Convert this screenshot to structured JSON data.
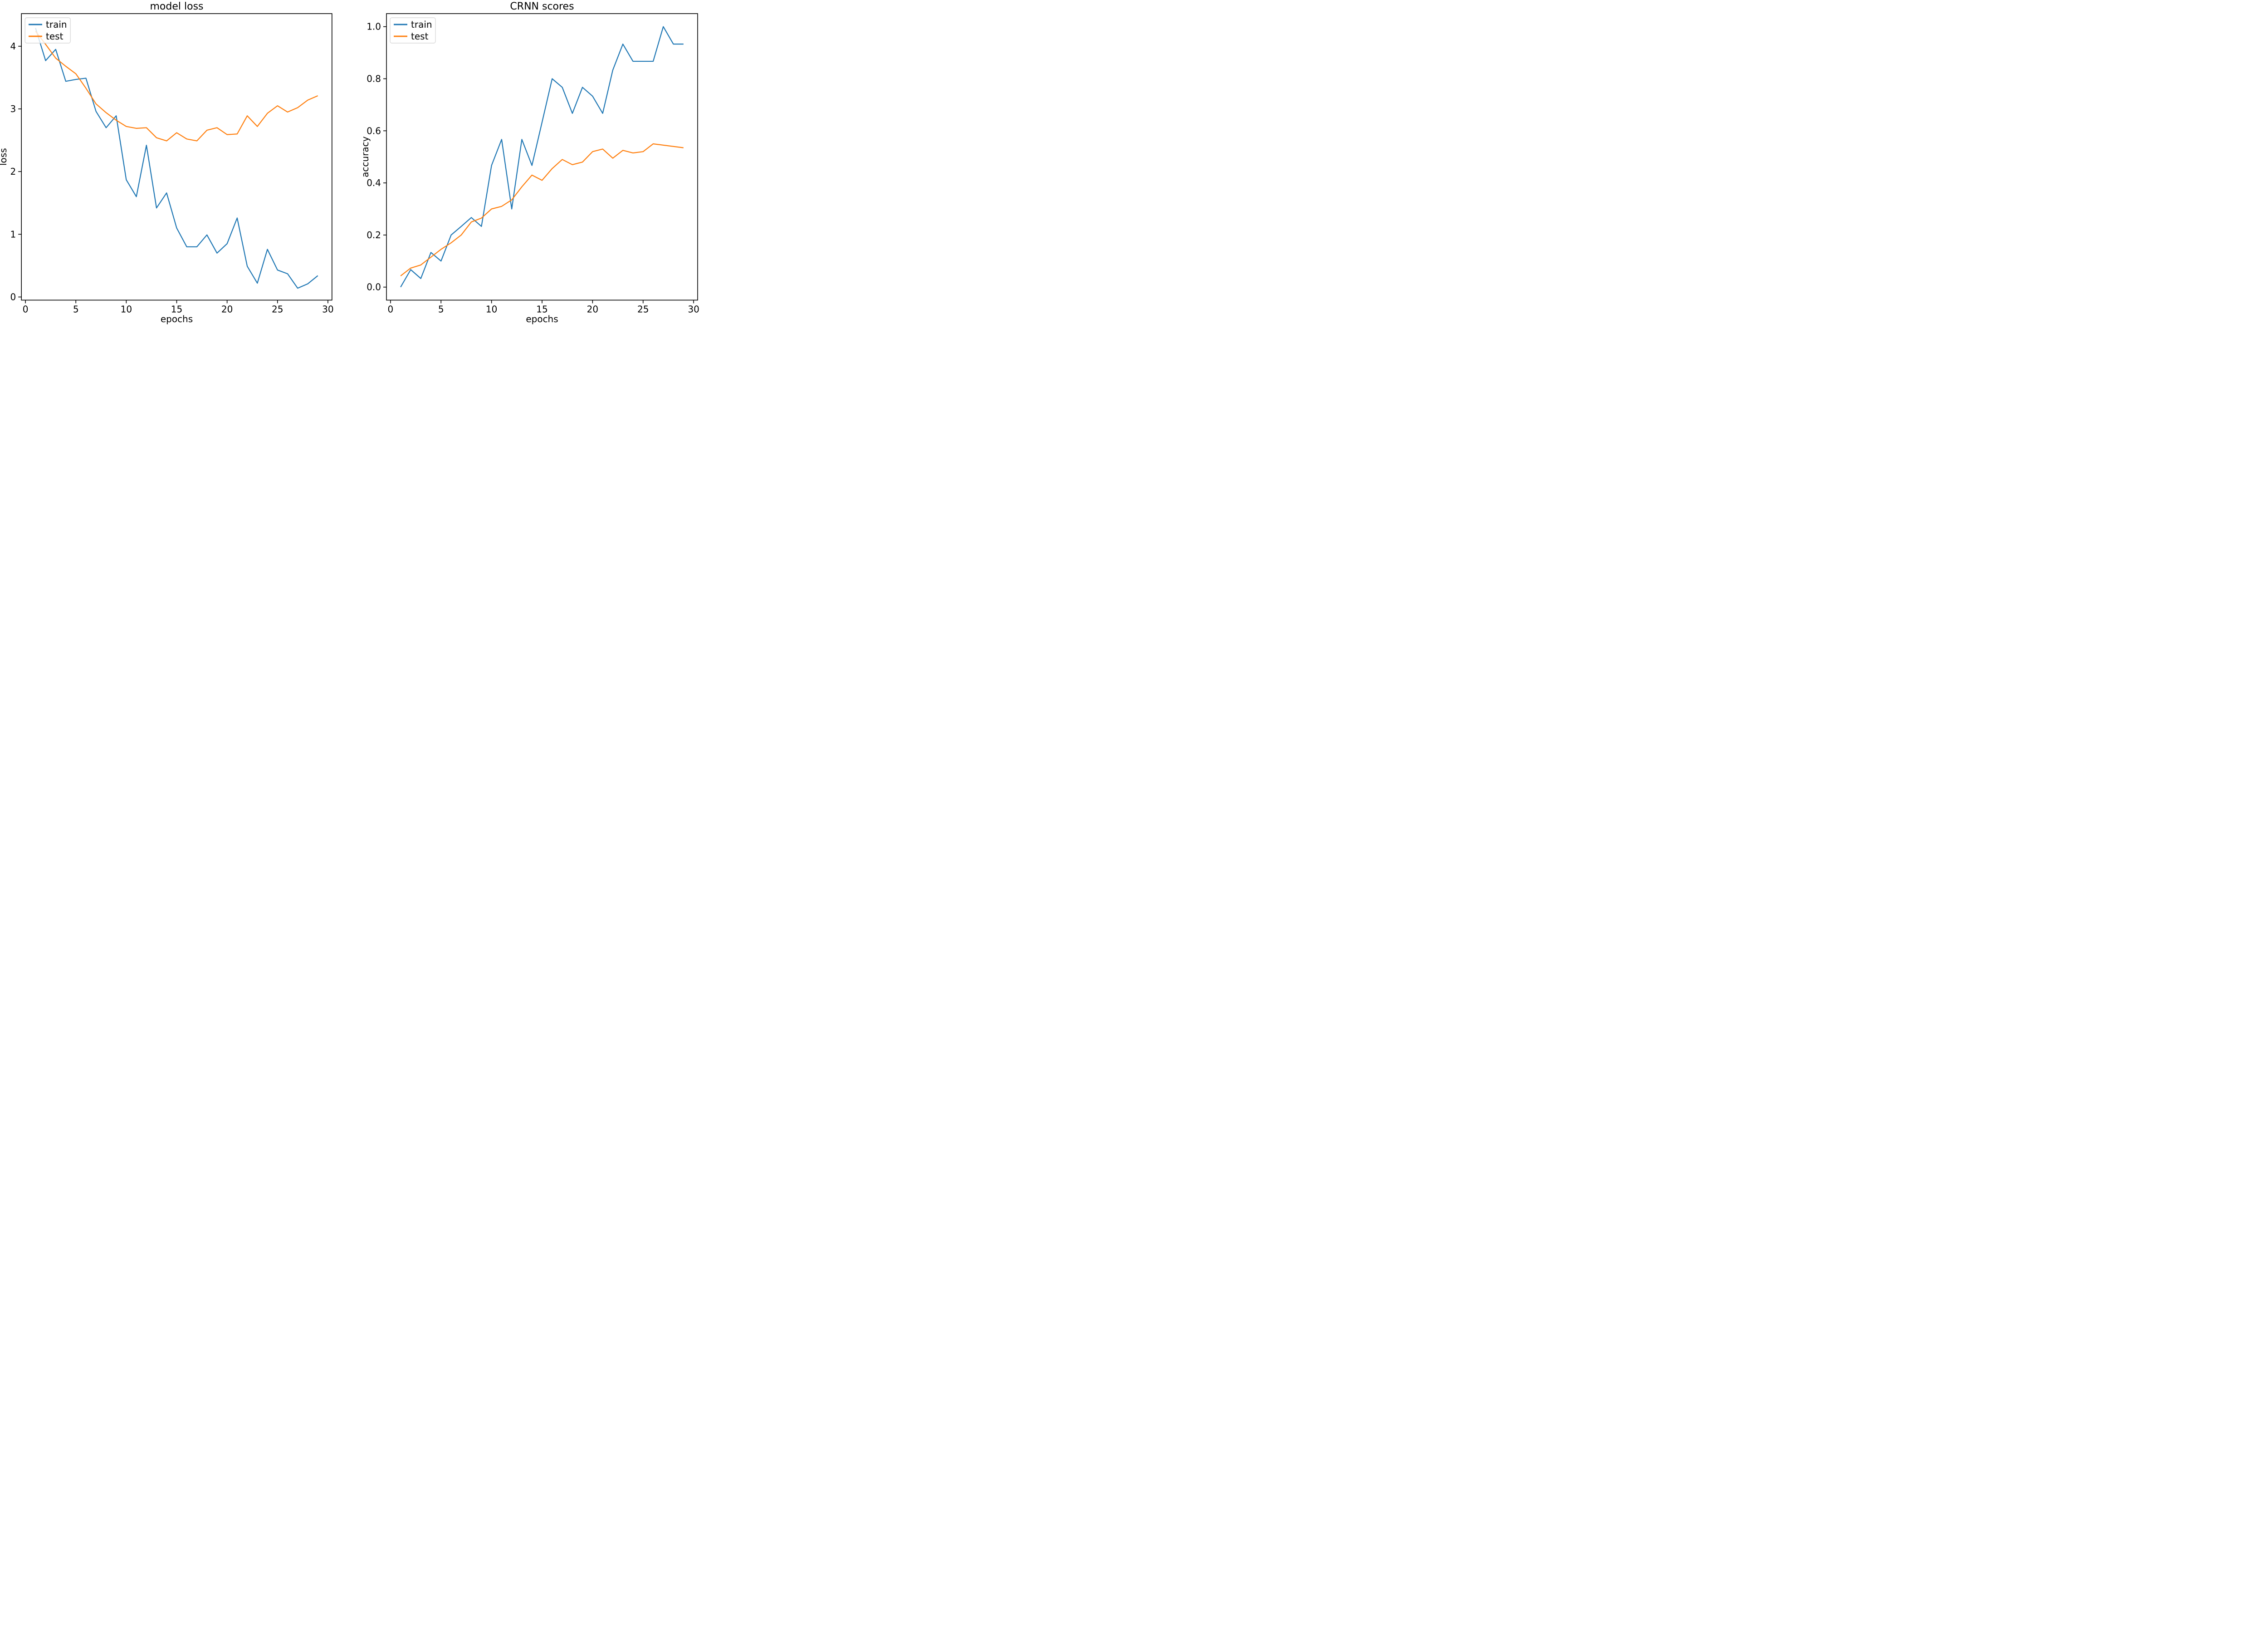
{
  "chart_data": [
    {
      "id": "model-loss",
      "type": "line",
      "title": "model loss",
      "xlabel": "epochs",
      "ylabel": "loss",
      "x": [
        1,
        2,
        3,
        4,
        5,
        6,
        7,
        8,
        9,
        10,
        11,
        12,
        13,
        14,
        15,
        16,
        17,
        18,
        19,
        20,
        21,
        22,
        23,
        24,
        25,
        26,
        27,
        28,
        29
      ],
      "series": [
        {
          "name": "train",
          "color": "#1f77b4",
          "values": [
            4.29,
            3.77,
            3.95,
            3.44,
            3.47,
            3.49,
            2.96,
            2.7,
            2.89,
            1.87,
            1.6,
            2.42,
            1.42,
            1.66,
            1.1,
            0.8,
            0.8,
            0.99,
            0.7,
            0.85,
            1.26,
            0.49,
            0.22,
            0.76,
            0.43,
            0.37,
            0.14,
            0.21,
            0.34
          ]
        },
        {
          "name": "test",
          "color": "#ff7f0e",
          "values": [
            4.24,
            4.03,
            3.81,
            3.68,
            3.56,
            3.33,
            3.08,
            2.94,
            2.82,
            2.72,
            2.69,
            2.7,
            2.54,
            2.49,
            2.62,
            2.52,
            2.49,
            2.66,
            2.7,
            2.59,
            2.6,
            2.89,
            2.72,
            2.93,
            3.05,
            2.95,
            3.02,
            3.14,
            3.21
          ]
        }
      ],
      "xlim": [
        -0.4,
        30.4
      ],
      "ylim": [
        -0.05,
        4.52
      ],
      "xticks": {
        "values": [
          0,
          5,
          10,
          15,
          20,
          25,
          30
        ],
        "labels": [
          "0",
          "5",
          "10",
          "15",
          "20",
          "25",
          "30"
        ]
      },
      "yticks": {
        "values": [
          0,
          1,
          2,
          3,
          4
        ],
        "labels": [
          "0",
          "1",
          "2",
          "3",
          "4"
        ]
      },
      "grid": false,
      "legend": {
        "position": "upper-left",
        "entries": [
          "train",
          "test"
        ]
      }
    },
    {
      "id": "crnn-scores",
      "type": "line",
      "title": "CRNN scores",
      "xlabel": "epochs",
      "ylabel": "accuracy",
      "x": [
        1,
        2,
        3,
        4,
        5,
        6,
        7,
        8,
        9,
        10,
        11,
        12,
        13,
        14,
        15,
        16,
        17,
        18,
        19,
        20,
        21,
        22,
        23,
        24,
        25,
        26,
        27,
        28,
        29
      ],
      "series": [
        {
          "name": "train",
          "color": "#1f77b4",
          "values": [
            0.0,
            0.067,
            0.033,
            0.133,
            0.1,
            0.2,
            0.233,
            0.267,
            0.233,
            0.467,
            0.567,
            0.3,
            0.567,
            0.467,
            0.633,
            0.8,
            0.767,
            0.667,
            0.767,
            0.733,
            0.667,
            0.833,
            0.933,
            0.867,
            0.867,
            0.867,
            1.0,
            0.933,
            0.933
          ]
        },
        {
          "name": "test",
          "color": "#ff7f0e",
          "values": [
            0.043,
            0.073,
            0.085,
            0.115,
            0.145,
            0.17,
            0.2,
            0.25,
            0.265,
            0.3,
            0.31,
            0.335,
            0.385,
            0.43,
            0.41,
            0.455,
            0.49,
            0.47,
            0.48,
            0.52,
            0.53,
            0.495,
            0.525,
            0.515,
            0.52,
            0.55,
            0.545,
            0.54,
            0.535
          ]
        }
      ],
      "xlim": [
        -0.4,
        30.4
      ],
      "ylim": [
        -0.05,
        1.05
      ],
      "xticks": {
        "values": [
          0,
          5,
          10,
          15,
          20,
          25,
          30
        ],
        "labels": [
          "0",
          "5",
          "10",
          "15",
          "20",
          "25",
          "30"
        ]
      },
      "yticks": {
        "values": [
          0.0,
          0.2,
          0.4,
          0.6,
          0.8,
          1.0
        ],
        "labels": [
          "0.0",
          "0.2",
          "0.4",
          "0.6",
          "0.8",
          "1.0"
        ]
      },
      "grid": false,
      "legend": {
        "position": "upper-left",
        "entries": [
          "train",
          "test"
        ]
      }
    }
  ],
  "colors": {
    "train": "#1f77b4",
    "test": "#ff7f0e",
    "axis": "#000000",
    "legend_border": "#d9d9d9",
    "background": "#ffffff"
  }
}
